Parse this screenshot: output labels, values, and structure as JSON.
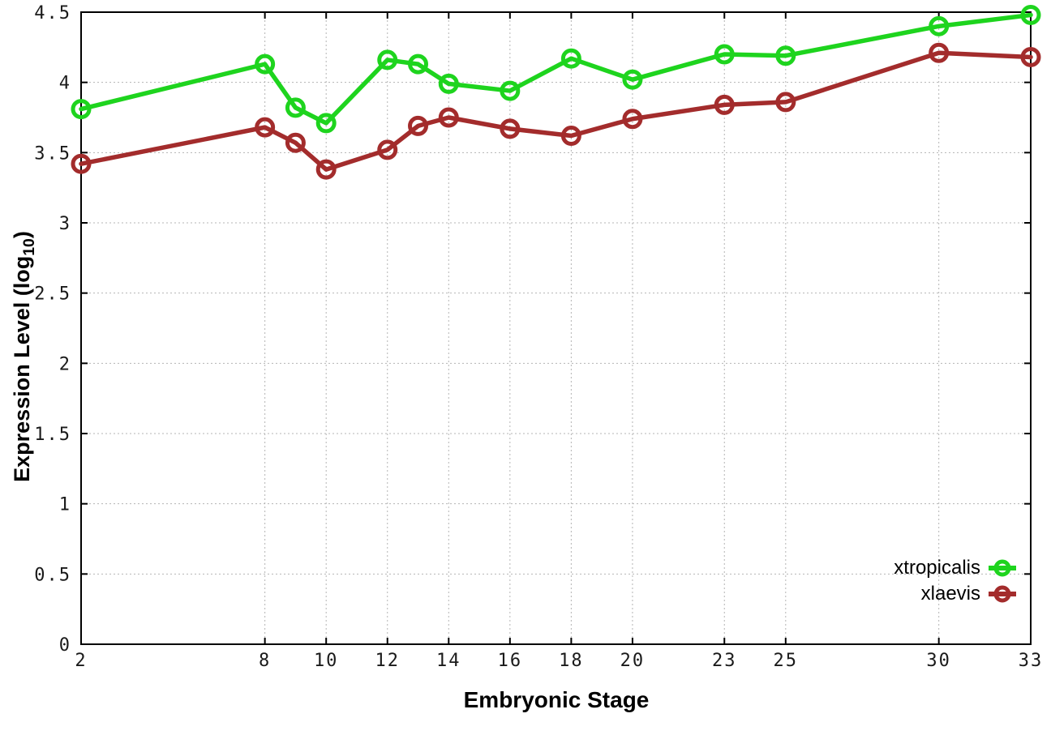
{
  "figure": {
    "xlabel": "Embryonic Stage",
    "ylabel": {
      "prefix": "Expression Level (log",
      "sub": "10",
      "suffix": ")"
    }
  },
  "chart_data": {
    "type": "line",
    "title": "",
    "xlabel": "Embryonic Stage",
    "ylabel": "Expression Level (log10)",
    "x": [
      2,
      8,
      9,
      10,
      12,
      13,
      14,
      16,
      18,
      20,
      23,
      25,
      30,
      33
    ],
    "xticks": [
      2,
      8,
      10,
      12,
      14,
      16,
      18,
      20,
      23,
      25,
      30,
      33
    ],
    "yticks": [
      0,
      0.5,
      1,
      1.5,
      2,
      2.5,
      3,
      3.5,
      4,
      4.5
    ],
    "xlim": [
      2,
      33
    ],
    "ylim": [
      0,
      4.5
    ],
    "grid": true,
    "legend_position": "bottom-right",
    "marker": "open-circle",
    "border_color": "#000000",
    "grid_color": "#b4b4b4",
    "series": [
      {
        "name": "xtropicalis",
        "color": "#1ed41e",
        "values": [
          3.81,
          4.13,
          3.82,
          3.71,
          4.16,
          4.13,
          3.99,
          3.94,
          4.17,
          4.02,
          4.2,
          4.19,
          4.4,
          4.48
        ]
      },
      {
        "name": "xlaevis",
        "color": "#a32c2c",
        "values": [
          3.42,
          3.68,
          3.57,
          3.38,
          3.52,
          3.69,
          3.75,
          3.67,
          3.62,
          3.74,
          3.84,
          3.86,
          4.21,
          4.18
        ]
      }
    ]
  }
}
